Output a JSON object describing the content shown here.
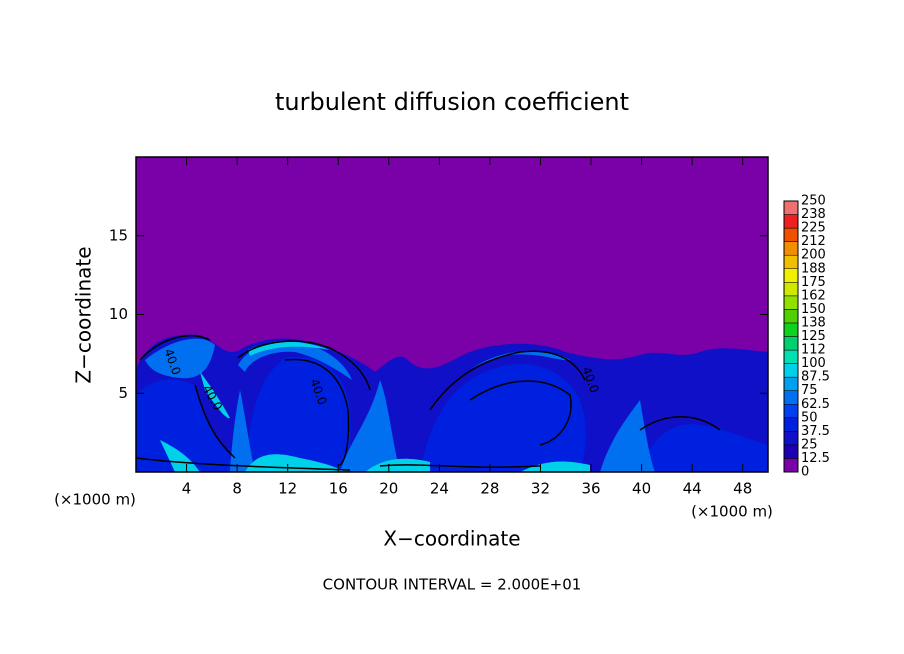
{
  "chart_data": {
    "type": "contour",
    "title": "turbulent diffusion coefficient",
    "x_label": "X−coordinate",
    "y_label": "Z−coordinate",
    "x_unit_label": "(×1000 m)",
    "footer": "CONTOUR INTERVAL = 2.000E+01",
    "contour_labels": [
      "40.0",
      "40.0",
      "40.0",
      "40.0"
    ],
    "xlim": [
      0,
      50
    ],
    "xticks": [
      4,
      8,
      12,
      16,
      20,
      24,
      28,
      32,
      36,
      40,
      44,
      48
    ],
    "ylim": [
      0,
      20
    ],
    "yticks": [
      5,
      10,
      15
    ],
    "colorbar": {
      "ticks": [
        0,
        12.5,
        25,
        37.5,
        50,
        62.5,
        75,
        87.5,
        100,
        {
          "value": 112.5,
          "label": "112"
        },
        125,
        {
          "value": 137.5,
          "label": "138"
        },
        150,
        {
          "value": 162.5,
          "label": "162"
        },
        175,
        {
          "value": 187.5,
          "label": "188"
        },
        200,
        {
          "value": 212.5,
          "label": "212"
        },
        225,
        {
          "value": 237.5,
          "label": "238"
        },
        250
      ],
      "colors": [
        "#7a00a8",
        "#1e00b4",
        "#1010c8",
        "#0020e0",
        "#0040f0",
        "#0070f0",
        "#00a0f0",
        "#00d0e8",
        "#00e0b0",
        "#00d070",
        "#10d020",
        "#50d000",
        "#90e000",
        "#d0e800",
        "#f0f000",
        "#f0c000",
        "#f09000",
        "#f05000",
        "#f02020",
        "#f07070"
      ]
    }
  }
}
